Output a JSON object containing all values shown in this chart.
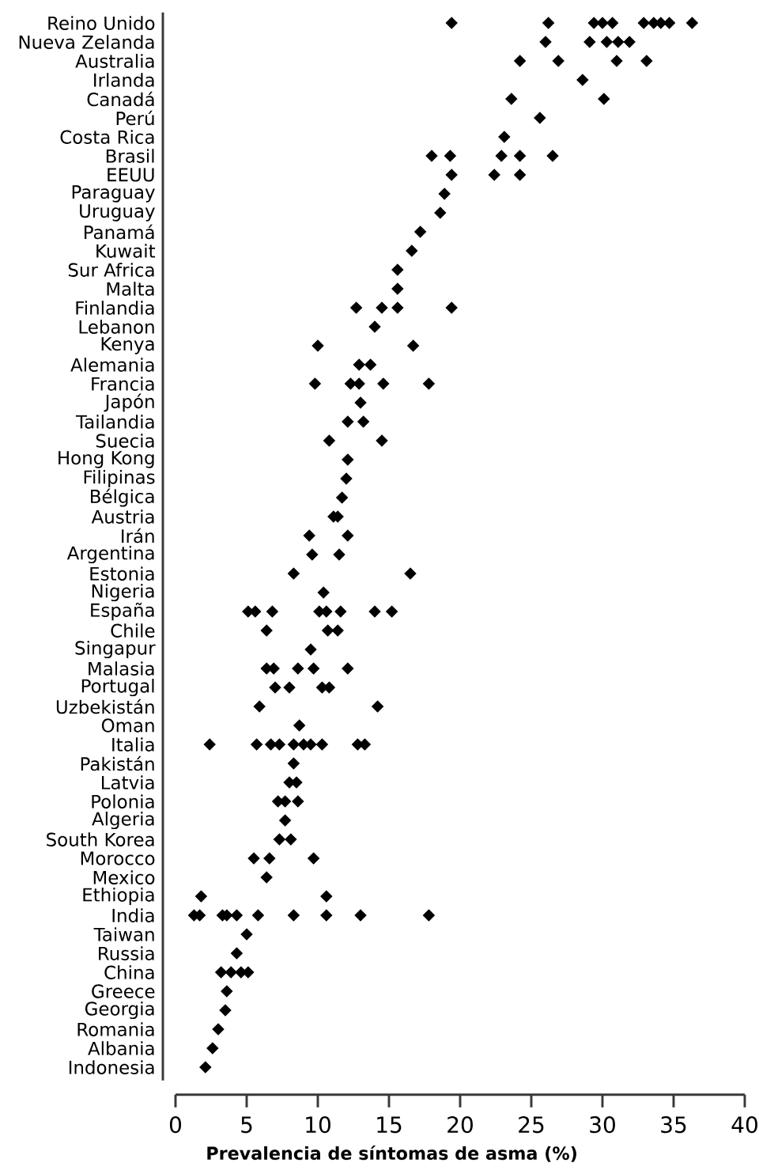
{
  "chart_data": {
    "type": "scatter",
    "orientation": "horizontal",
    "marker": "diamond",
    "xlabel": "Prevalencia de síntomas de asma (%)",
    "xlim": [
      0,
      40
    ],
    "xticks": [
      0,
      5,
      10,
      15,
      20,
      25,
      30,
      35,
      40
    ],
    "categories": [
      "Reino Unido",
      "Nueva Zelanda",
      "Australia",
      "Irlanda",
      "Canadá",
      "Perú",
      "Costa Rica",
      "Brasil",
      "EEUU",
      "Paraguay",
      "Uruguay",
      "Panamá",
      "Kuwait",
      "Sur Africa",
      "Malta",
      "Finlandia",
      "Lebanon",
      "Kenya",
      "Alemania",
      "Francia",
      "Japón",
      "Tailandia",
      "Suecia",
      "Hong Kong",
      "Filipinas",
      "Bélgica",
      "Austria",
      "Irán",
      "Argentina",
      "Estonia",
      "Nigeria",
      "España",
      "Chile",
      "Singapur",
      "Malasia",
      "Portugal",
      "Uzbekistán",
      "Oman",
      "Italia",
      "Pakistán",
      "Latvia",
      "Polonia",
      "Algeria",
      "South Korea",
      "Morocco",
      "Mexico",
      "Ethiopia",
      "India",
      "Taiwan",
      "Russia",
      "China",
      "Greece",
      "Georgia",
      "Romania",
      "Albania",
      "Indonesia"
    ],
    "series": [
      {
        "color": "#000000",
        "values": [
          19.4,
          26.0,
          24.2,
          28.6,
          23.6,
          25.6,
          23.1,
          18.0,
          19.4,
          18.9,
          18.6,
          17.2,
          16.6,
          15.6,
          15.6,
          12.7,
          14.0,
          10.0,
          12.9,
          9.8,
          13.0,
          12.1,
          10.8,
          12.1,
          12.0,
          11.7,
          11.1,
          9.4,
          9.6,
          8.3,
          10.4,
          5.1,
          6.4,
          9.5,
          6.4,
          7.0,
          5.9,
          8.7,
          2.4,
          8.3,
          8.0,
          7.2,
          7.7,
          7.3,
          5.5,
          6.4,
          1.8,
          1.3,
          5.0,
          4.3,
          3.2,
          3.6,
          3.5,
          3.0,
          2.6,
          2.1
        ]
      },
      {
        "color": "#000000",
        "values": [
          26.2,
          29.1,
          26.9,
          null,
          30.1,
          null,
          null,
          19.3,
          22.4,
          null,
          null,
          null,
          null,
          null,
          null,
          14.5,
          null,
          16.7,
          13.7,
          12.3,
          null,
          13.2,
          14.5,
          null,
          null,
          null,
          11.4,
          12.1,
          11.5,
          16.5,
          null,
          5.6,
          10.7,
          null,
          6.9,
          8.0,
          14.2,
          null,
          5.7,
          null,
          8.5,
          7.7,
          null,
          8.1,
          6.6,
          null,
          10.6,
          1.7,
          null,
          null,
          3.9,
          null,
          null,
          null,
          null,
          null
        ]
      },
      {
        "color": "#000000",
        "values": [
          29.4,
          30.3,
          31.0,
          null,
          null,
          null,
          null,
          22.9,
          24.2,
          null,
          null,
          null,
          null,
          null,
          null,
          15.6,
          null,
          null,
          null,
          12.9,
          null,
          null,
          null,
          null,
          null,
          null,
          null,
          null,
          null,
          null,
          null,
          6.8,
          11.4,
          null,
          8.6,
          10.3,
          null,
          null,
          6.7,
          null,
          null,
          8.6,
          null,
          null,
          9.7,
          null,
          null,
          3.3,
          null,
          null,
          4.6,
          null,
          null,
          null,
          null,
          null
        ]
      },
      {
        "color": "#000000",
        "values": [
          30.0,
          31.1,
          33.1,
          null,
          null,
          null,
          null,
          24.2,
          null,
          null,
          null,
          null,
          null,
          null,
          null,
          19.4,
          null,
          null,
          null,
          14.6,
          null,
          null,
          null,
          null,
          null,
          null,
          null,
          null,
          null,
          null,
          null,
          10.1,
          null,
          null,
          9.7,
          10.8,
          null,
          null,
          7.3,
          null,
          null,
          null,
          null,
          null,
          null,
          null,
          null,
          3.6,
          null,
          null,
          5.1,
          null,
          null,
          null,
          null,
          null
        ]
      },
      {
        "color": "#000000",
        "values": [
          30.7,
          31.9,
          null,
          null,
          null,
          null,
          null,
          26.5,
          null,
          null,
          null,
          null,
          null,
          null,
          null,
          null,
          null,
          null,
          null,
          17.8,
          null,
          null,
          null,
          null,
          null,
          null,
          null,
          null,
          null,
          null,
          null,
          10.6,
          null,
          null,
          12.1,
          null,
          null,
          null,
          8.3,
          null,
          null,
          null,
          null,
          null,
          null,
          null,
          null,
          4.3,
          null,
          null,
          null,
          null,
          null,
          null,
          null,
          null
        ]
      },
      {
        "color": "#000000",
        "values": [
          32.9,
          null,
          null,
          null,
          null,
          null,
          null,
          null,
          null,
          null,
          null,
          null,
          null,
          null,
          null,
          null,
          null,
          null,
          null,
          null,
          null,
          null,
          null,
          null,
          null,
          null,
          null,
          null,
          null,
          null,
          null,
          11.6,
          null,
          null,
          null,
          null,
          null,
          null,
          9.0,
          null,
          null,
          null,
          null,
          null,
          null,
          null,
          null,
          5.8,
          null,
          null,
          null,
          null,
          null,
          null,
          null,
          null
        ]
      },
      {
        "color": "#000000",
        "values": [
          33.6,
          null,
          null,
          null,
          null,
          null,
          null,
          null,
          null,
          null,
          null,
          null,
          null,
          null,
          null,
          null,
          null,
          null,
          null,
          null,
          null,
          null,
          null,
          null,
          null,
          null,
          null,
          null,
          null,
          null,
          null,
          14.0,
          null,
          null,
          null,
          null,
          null,
          null,
          9.5,
          null,
          null,
          null,
          null,
          null,
          null,
          null,
          null,
          8.3,
          null,
          null,
          null,
          null,
          null,
          null,
          null,
          null
        ]
      },
      {
        "color": "#000000",
        "values": [
          34.1,
          null,
          null,
          null,
          null,
          null,
          null,
          null,
          null,
          null,
          null,
          null,
          null,
          null,
          null,
          null,
          null,
          null,
          null,
          null,
          null,
          null,
          null,
          null,
          null,
          null,
          null,
          null,
          null,
          null,
          null,
          15.2,
          null,
          null,
          null,
          null,
          null,
          null,
          10.3,
          null,
          null,
          null,
          null,
          null,
          null,
          null,
          null,
          10.6,
          null,
          null,
          null,
          null,
          null,
          null,
          null,
          null
        ]
      },
      {
        "color": "#000000",
        "values": [
          34.7,
          null,
          null,
          null,
          null,
          null,
          null,
          null,
          null,
          null,
          null,
          null,
          null,
          null,
          null,
          null,
          null,
          null,
          null,
          null,
          null,
          null,
          null,
          null,
          null,
          null,
          null,
          null,
          null,
          null,
          null,
          null,
          null,
          null,
          null,
          null,
          null,
          null,
          12.8,
          null,
          null,
          null,
          null,
          null,
          null,
          null,
          null,
          13.0,
          null,
          null,
          null,
          null,
          null,
          null,
          null,
          null
        ]
      },
      {
        "color": "#000000",
        "values": [
          36.3,
          null,
          null,
          null,
          null,
          null,
          null,
          null,
          null,
          null,
          null,
          null,
          null,
          null,
          null,
          null,
          null,
          null,
          null,
          null,
          null,
          null,
          null,
          null,
          null,
          null,
          null,
          null,
          null,
          null,
          null,
          null,
          null,
          null,
          null,
          null,
          null,
          null,
          13.3,
          null,
          null,
          null,
          null,
          null,
          null,
          null,
          null,
          17.8,
          null,
          null,
          null,
          null,
          null,
          null,
          null,
          null
        ]
      }
    ]
  }
}
